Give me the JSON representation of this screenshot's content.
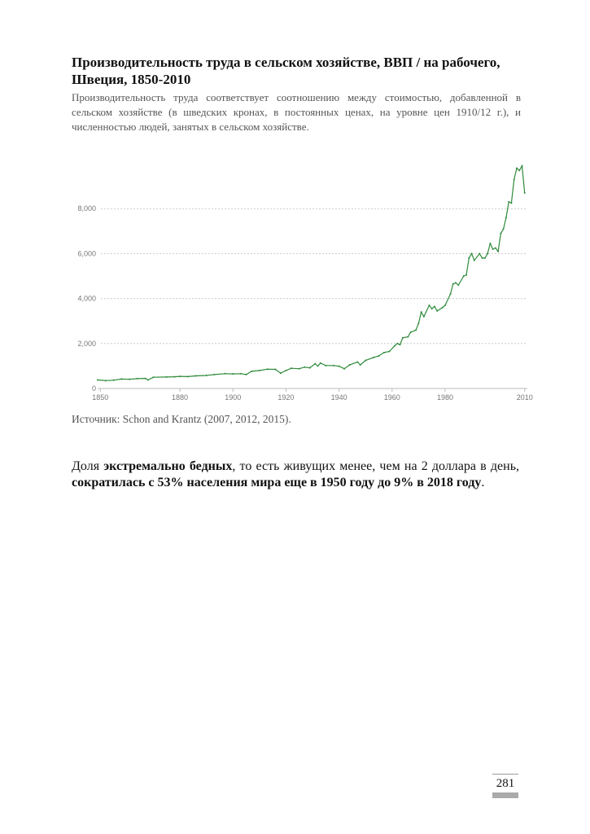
{
  "document": {
    "title": "Производительность труда в сельском хозяйстве, ВВП / на рабочего, Швеция, 1850-2010",
    "subtitle": "Производительность труда соответствует соотношению между стоимостью, добавленной в сельском хозяйстве (в шведских кронах, в постоянных ценах, на уровне цен 1910/12 г.), и численностью людей, занятых в сельском хозяйстве.",
    "source": "Источник: Schon and Krantz (2007, 2012, 2015).",
    "para": {
      "p1": "Доля ",
      "b1": "экстремально бедных",
      "p2": ", то есть живущих менее, чем на 2 доллара в день, ",
      "b2": "сократилась с 53% населения мира еще в 1950 году до 9% в 2018 году",
      "p3": "."
    },
    "page_number": "281"
  },
  "chart_data": {
    "type": "line",
    "title": "Производительность труда в сельском хозяйстве, ВВП / на рабочего, Швеция, 1850-2010",
    "xlabel": "",
    "ylabel": "",
    "xlim": [
      1849,
      2011
    ],
    "ylim": [
      0,
      10000
    ],
    "x_ticks": [
      1850,
      1880,
      1900,
      1920,
      1940,
      1960,
      1980,
      2010
    ],
    "y_ticks": [
      {
        "v": 0,
        "label": "0"
      },
      {
        "v": 2000,
        "label": "2,000"
      },
      {
        "v": 4000,
        "label": "4,000"
      },
      {
        "v": 6000,
        "label": "6,000"
      },
      {
        "v": 8000,
        "label": "8,000"
      }
    ],
    "grid": true,
    "color": "#2e8b3a",
    "series": [
      {
        "name": "Sweden",
        "x": [
          1849,
          1852,
          1855,
          1858,
          1861,
          1864,
          1867,
          1868,
          1870,
          1875,
          1878,
          1880,
          1883,
          1886,
          1890,
          1893,
          1897,
          1900,
          1903,
          1905,
          1907,
          1910,
          1913,
          1916,
          1918,
          1920,
          1922,
          1925,
          1927,
          1929,
          1931,
          1932,
          1933,
          1935,
          1938,
          1940,
          1942,
          1944,
          1947,
          1948,
          1950,
          1953,
          1955,
          1957,
          1959,
          1961,
          1962,
          1963,
          1964,
          1966,
          1967,
          1969,
          1970,
          1971,
          1972,
          1974,
          1975,
          1976,
          1977,
          1979,
          1980,
          1982,
          1983,
          1984,
          1985,
          1987,
          1988,
          1989,
          1990,
          1991,
          1993,
          1994,
          1995,
          1996,
          1997,
          1998,
          1999,
          2000,
          2001,
          2002,
          2003,
          2004,
          2005,
          2006,
          2007,
          2008,
          2009,
          2010
        ],
        "values": [
          380,
          350,
          370,
          420,
          410,
          440,
          450,
          380,
          500,
          510,
          520,
          540,
          530,
          560,
          580,
          620,
          660,
          650,
          660,
          620,
          760,
          800,
          860,
          850,
          680,
          800,
          900,
          880,
          950,
          920,
          1100,
          1000,
          1130,
          1020,
          1020,
          990,
          880,
          1050,
          1180,
          1050,
          1250,
          1380,
          1450,
          1600,
          1650,
          1900,
          2000,
          1950,
          2250,
          2300,
          2500,
          2600,
          2900,
          3400,
          3200,
          3700,
          3550,
          3650,
          3450,
          3600,
          3700,
          4200,
          4650,
          4700,
          4600,
          5000,
          5050,
          5800,
          6000,
          5700,
          6000,
          5800,
          5800,
          6000,
          6450,
          6200,
          6250,
          6100,
          6900,
          7100,
          7600,
          8300,
          8250,
          9300,
          9800,
          9700,
          9900,
          8700
        ]
      }
    ]
  }
}
